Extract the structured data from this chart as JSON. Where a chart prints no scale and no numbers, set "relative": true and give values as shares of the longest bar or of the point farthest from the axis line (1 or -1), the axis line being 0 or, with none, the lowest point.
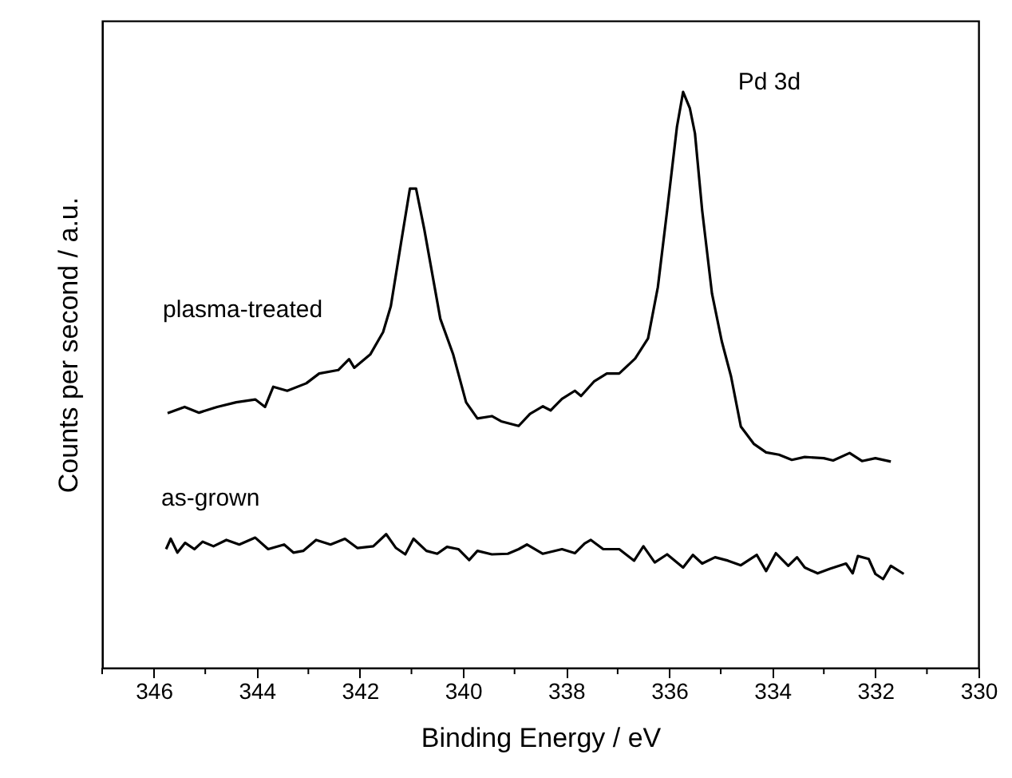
{
  "chart_data": {
    "type": "line",
    "relative": true,
    "xlabel": "Binding Energy / eV",
    "ylabel": "Counts per second / a.u.",
    "xlim": [
      347,
      330
    ],
    "xticks": [
      {
        "value": 347,
        "label": null
      },
      346,
      {
        "value": 345,
        "label": null
      },
      344,
      {
        "value": 343,
        "label": null
      },
      342,
      {
        "value": 341,
        "label": null
      },
      340,
      {
        "value": 339,
        "label": null
      },
      338,
      {
        "value": 337,
        "label": null
      },
      336,
      {
        "value": 335,
        "label": null
      },
      334,
      {
        "value": 333,
        "label": null
      },
      332,
      {
        "value": 331,
        "label": null
      },
      330
    ],
    "annotations": [
      "Pd 3d"
    ],
    "grid": false,
    "legend": false,
    "line_style": "solid",
    "series": [
      {
        "name": "plasma-treated",
        "color": "#000000",
        "x": [
          345.73,
          345.4,
          345.12,
          344.77,
          344.4,
          344.03,
          343.84,
          343.68,
          343.41,
          343.04,
          342.79,
          342.42,
          342.21,
          342.11,
          341.8,
          341.55,
          341.4,
          341.2,
          341.03,
          340.91,
          340.75,
          340.44,
          340.19,
          339.94,
          339.72,
          339.44,
          339.26,
          338.92,
          338.7,
          338.45,
          338.3,
          338.08,
          337.83,
          337.71,
          337.46,
          337.21,
          336.97,
          336.66,
          336.41,
          336.22,
          336.04,
          335.85,
          335.73,
          335.6,
          335.5,
          335.36,
          335.17,
          334.98,
          334.8,
          334.61,
          334.36,
          334.12,
          333.87,
          333.62,
          333.37,
          333.0,
          332.82,
          332.5,
          332.26,
          332.0,
          331.7
        ],
        "values": [
          0.442,
          0.453,
          0.443,
          0.453,
          0.461,
          0.466,
          0.453,
          0.488,
          0.481,
          0.494,
          0.511,
          0.517,
          0.536,
          0.521,
          0.544,
          0.583,
          0.628,
          0.739,
          0.832,
          0.832,
          0.761,
          0.606,
          0.544,
          0.461,
          0.433,
          0.437,
          0.428,
          0.42,
          0.441,
          0.454,
          0.447,
          0.467,
          0.481,
          0.472,
          0.497,
          0.511,
          0.511,
          0.537,
          0.572,
          0.661,
          0.794,
          0.939,
          1.0,
          0.972,
          0.928,
          0.794,
          0.65,
          0.567,
          0.506,
          0.419,
          0.389,
          0.374,
          0.37,
          0.361,
          0.366,
          0.364,
          0.36,
          0.373,
          0.359,
          0.364,
          0.358
        ]
      },
      {
        "name": "as-grown",
        "color": "#000000",
        "x": [
          345.76,
          345.67,
          345.54,
          345.39,
          345.21,
          345.05,
          344.84,
          344.59,
          344.34,
          344.03,
          343.78,
          343.47,
          343.29,
          343.1,
          342.85,
          342.57,
          342.29,
          342.05,
          341.74,
          341.49,
          341.3,
          341.12,
          340.96,
          340.71,
          340.5,
          340.31,
          340.09,
          339.88,
          339.72,
          339.44,
          339.13,
          338.92,
          338.76,
          338.45,
          338.08,
          337.83,
          337.64,
          337.52,
          337.28,
          336.97,
          336.68,
          336.5,
          336.28,
          336.04,
          335.73,
          335.54,
          335.36,
          335.11,
          334.86,
          334.61,
          334.3,
          334.12,
          333.93,
          333.69,
          333.52,
          333.37,
          333.12,
          332.88,
          332.57,
          332.44,
          332.34,
          332.13,
          332.0,
          331.85,
          331.7,
          331.45
        ],
        "values": [
          0.206,
          0.224,
          0.2,
          0.217,
          0.206,
          0.219,
          0.211,
          0.222,
          0.214,
          0.226,
          0.206,
          0.214,
          0.2,
          0.203,
          0.222,
          0.214,
          0.224,
          0.208,
          0.211,
          0.232,
          0.208,
          0.197,
          0.224,
          0.203,
          0.198,
          0.21,
          0.206,
          0.187,
          0.203,
          0.197,
          0.198,
          0.206,
          0.214,
          0.198,
          0.206,
          0.199,
          0.216,
          0.222,
          0.206,
          0.206,
          0.186,
          0.211,
          0.183,
          0.197,
          0.174,
          0.196,
          0.181,
          0.192,
          0.186,
          0.178,
          0.196,
          0.168,
          0.199,
          0.177,
          0.192,
          0.174,
          0.164,
          0.172,
          0.181,
          0.164,
          0.194,
          0.189,
          0.163,
          0.154,
          0.177,
          0.163
        ]
      }
    ]
  }
}
